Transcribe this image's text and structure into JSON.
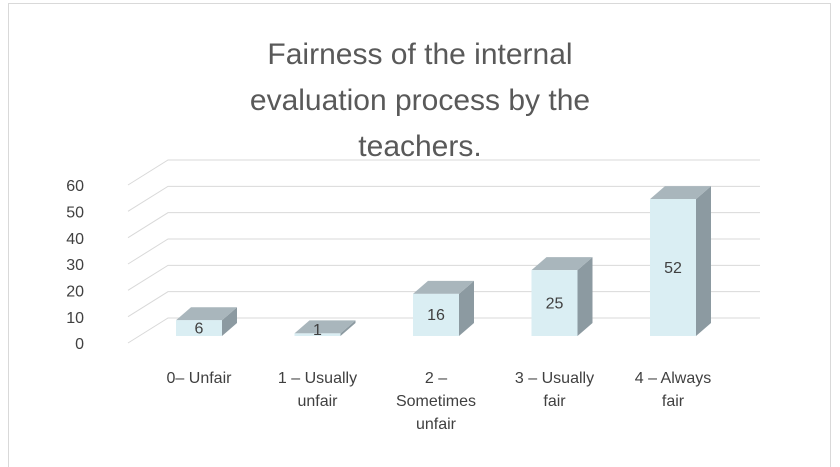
{
  "chart_data": {
    "type": "bar3d",
    "title": "Fairness of the internal evaluation process by the teachers.",
    "categories": [
      "0– Unfair",
      "1 – Usually unfair",
      "2 – Sometimes unfair",
      "3 – Usually fair",
      "4 – Always fair"
    ],
    "values": [
      6,
      1,
      16,
      25,
      52
    ],
    "color": "#daeef3",
    "ylim": [
      0,
      60
    ],
    "yticks": [
      0,
      10,
      20,
      30,
      40,
      50,
      60
    ],
    "grid": true
  }
}
